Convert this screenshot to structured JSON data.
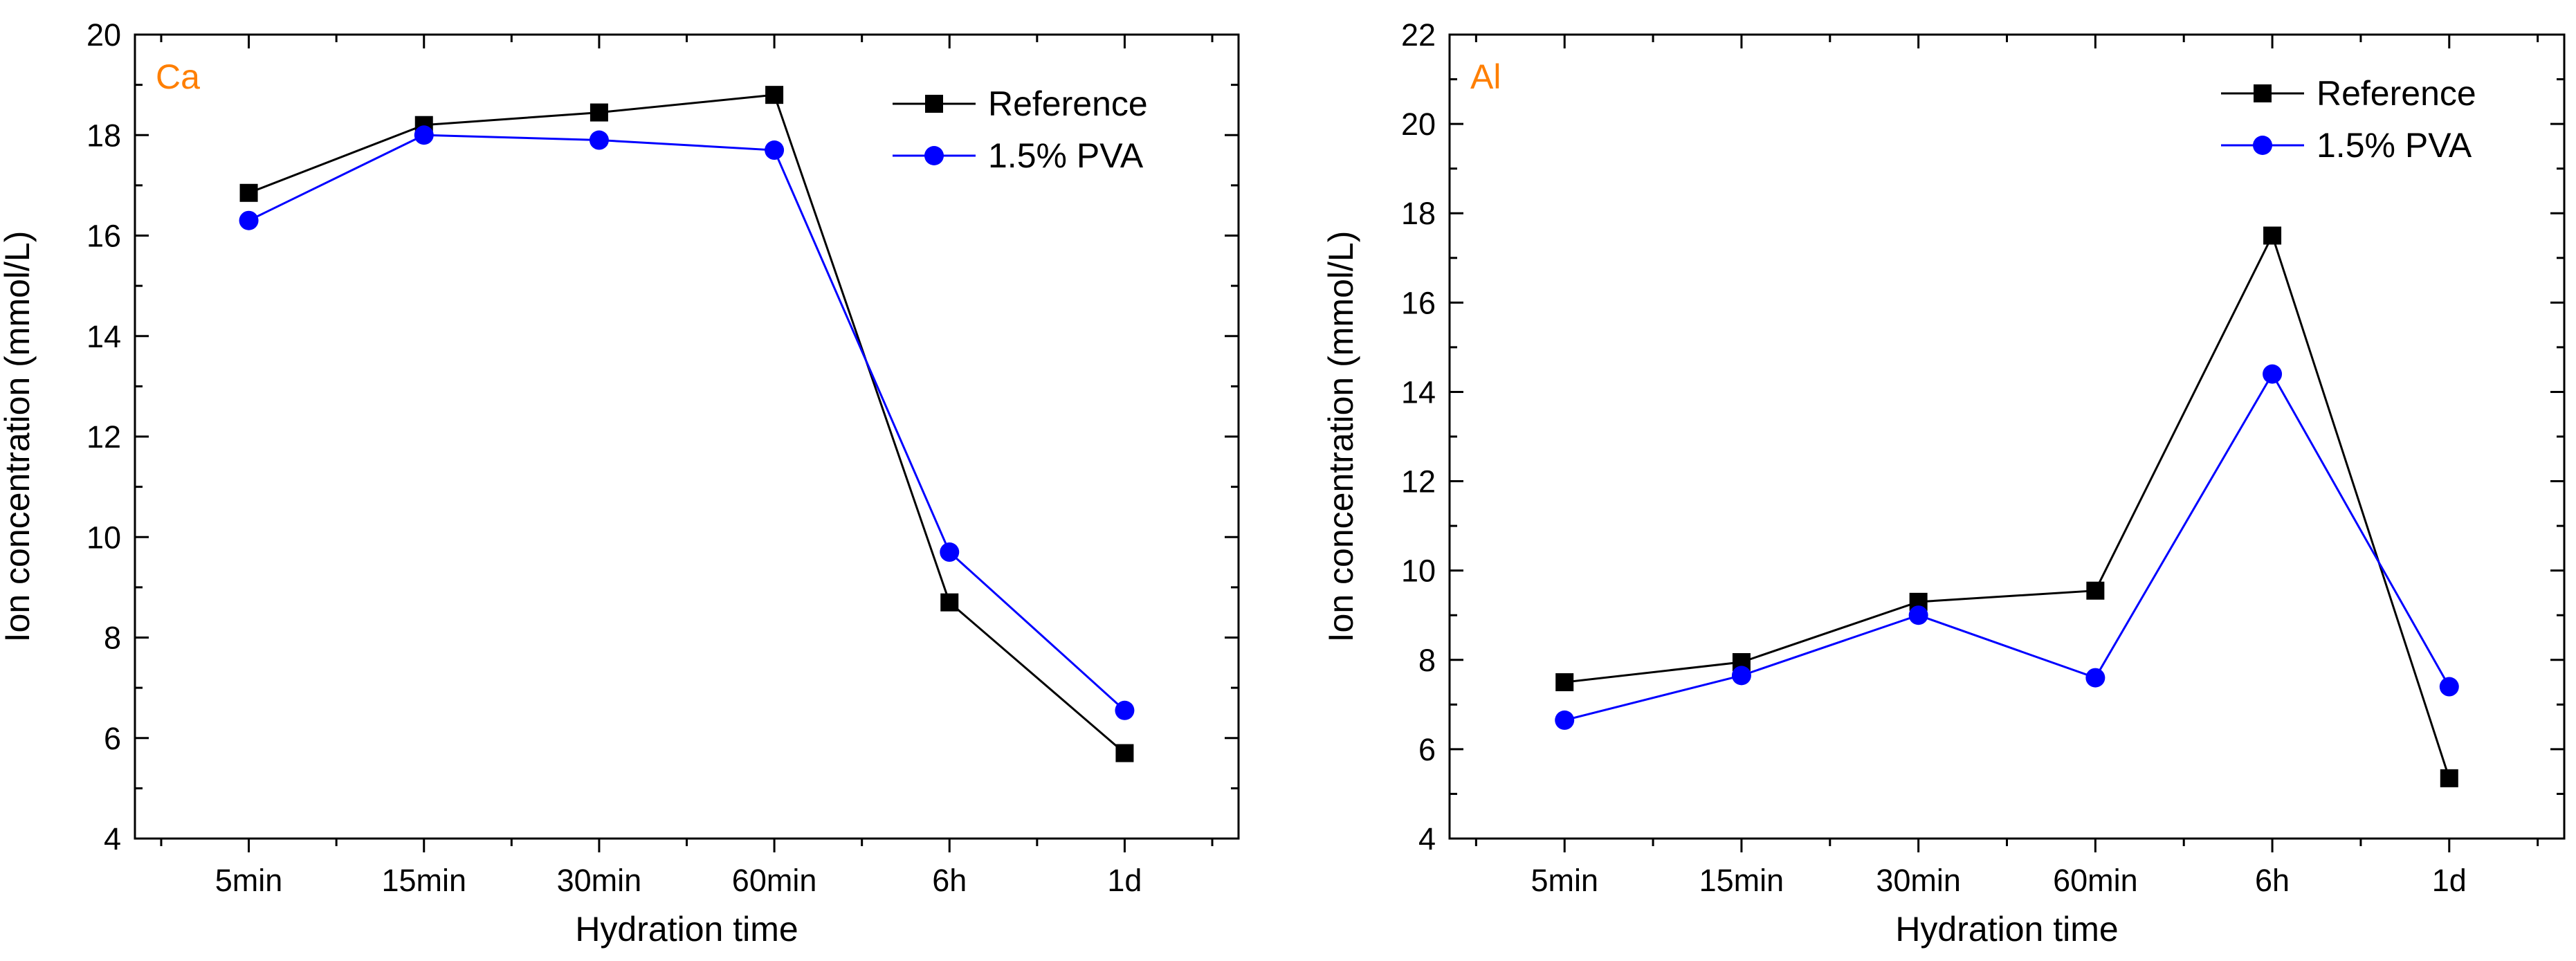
{
  "colors": {
    "reference": "#000000",
    "pva": "#0000ff",
    "panel_label": "#ff7f00",
    "axis": "#000000"
  },
  "chart_data": [
    {
      "type": "line",
      "panel_label": "Ca",
      "xlabel": "Hydration time",
      "ylabel": "Ion concentration (mmol/L)",
      "categories": [
        "5min",
        "15min",
        "30min",
        "60min",
        "6h",
        "1d"
      ],
      "ylim": [
        4,
        20
      ],
      "yticks": [
        4,
        6,
        8,
        10,
        12,
        14,
        16,
        18,
        20
      ],
      "legend_position": "top-right",
      "grid": false,
      "series": [
        {
          "name": "Reference",
          "marker": "square",
          "color": "#000000",
          "values": [
            16.85,
            18.2,
            18.45,
            18.8,
            8.7,
            5.7
          ]
        },
        {
          "name": "1.5% PVA",
          "marker": "circle",
          "color": "#0000ff",
          "values": [
            16.3,
            18.0,
            17.9,
            17.7,
            9.7,
            6.55
          ]
        }
      ]
    },
    {
      "type": "line",
      "panel_label": "Al",
      "xlabel": "Hydration time",
      "ylabel": "Ion concentration (mmol/L)",
      "categories": [
        "5min",
        "15min",
        "30min",
        "60min",
        "6h",
        "1d"
      ],
      "ylim": [
        4,
        22
      ],
      "yticks": [
        4,
        6,
        8,
        10,
        12,
        14,
        16,
        18,
        20,
        22
      ],
      "legend_position": "top-right",
      "grid": false,
      "series": [
        {
          "name": "Reference",
          "marker": "square",
          "color": "#000000",
          "values": [
            7.5,
            7.95,
            9.3,
            9.55,
            17.5,
            5.35
          ]
        },
        {
          "name": "1.5% PVA",
          "marker": "circle",
          "color": "#0000ff",
          "values": [
            6.65,
            7.65,
            9.0,
            7.6,
            14.4,
            7.4
          ]
        }
      ]
    }
  ]
}
